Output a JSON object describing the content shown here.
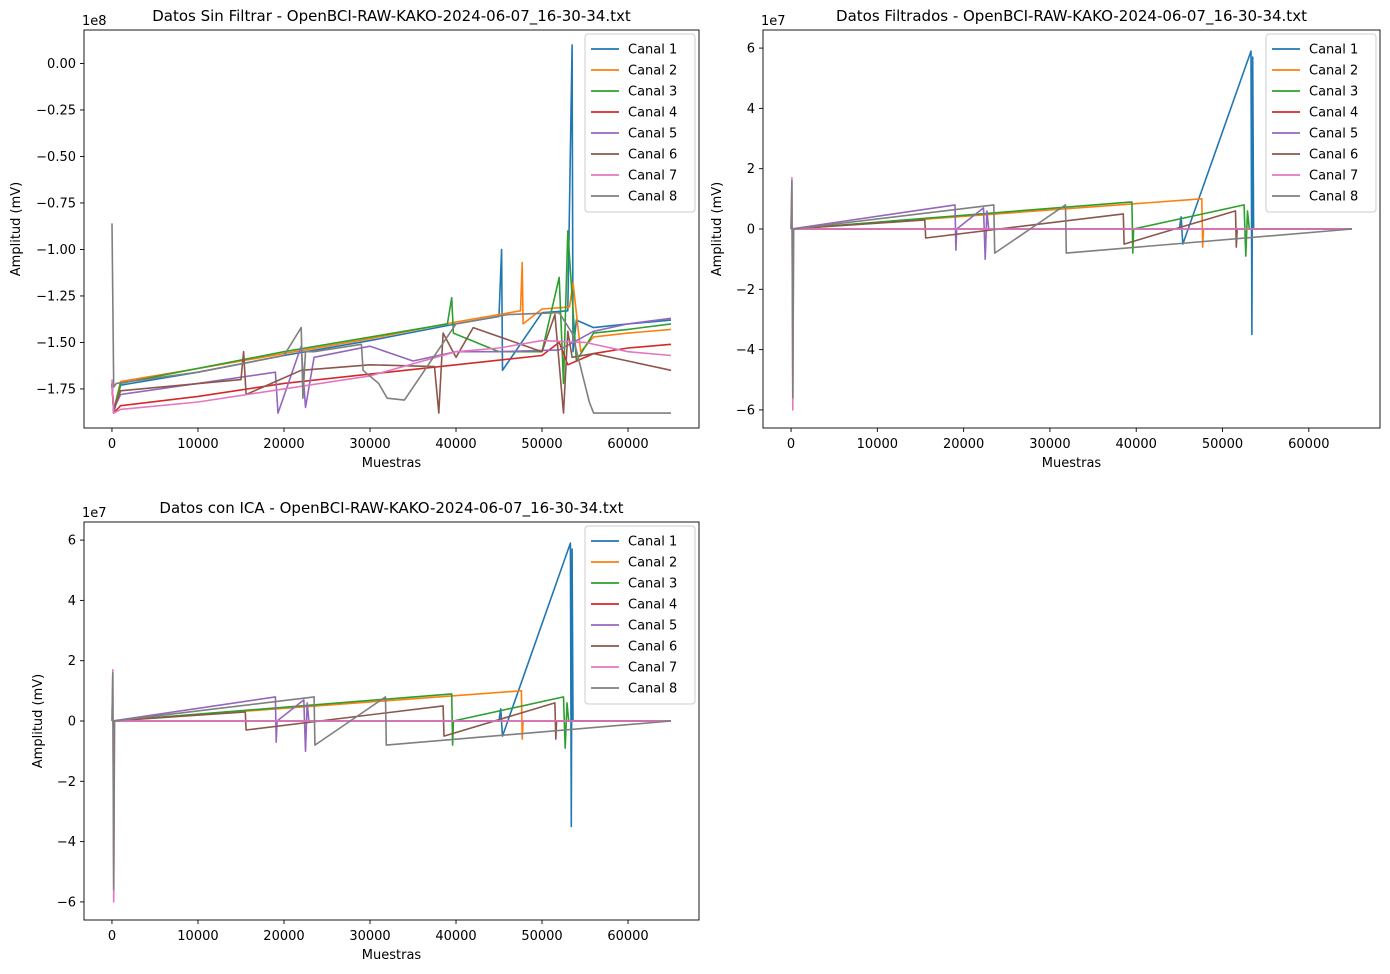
{
  "colors": [
    "#1f77b4",
    "#ff7f0e",
    "#2ca02c",
    "#d62728",
    "#9467bd",
    "#8c564b",
    "#e377c2",
    "#7f7f7f"
  ],
  "legend_labels": [
    "Canal 1",
    "Canal 2",
    "Canal 3",
    "Canal 4",
    "Canal 5",
    "Canal 6",
    "Canal 7",
    "Canal 8"
  ],
  "chart_data": [
    {
      "type": "line",
      "title": "Datos Sin Filtrar - OpenBCI-RAW-KAKO-2024-06-07_16-30-34.txt",
      "xlabel": "Muestras",
      "ylabel": "Amplitud (mV)",
      "y_offset_label": "1e8",
      "xlim": [
        -3250,
        68250
      ],
      "ylim": [
        -1.96,
        0.18
      ],
      "xticks": [
        0,
        10000,
        20000,
        30000,
        40000,
        50000,
        60000
      ],
      "xtick_labels": [
        "0",
        "10000",
        "20000",
        "30000",
        "40000",
        "50000",
        "60000"
      ],
      "yticks": [
        -1.75,
        -1.5,
        -1.25,
        -1.0,
        -0.75,
        -0.5,
        -0.25,
        0.0
      ],
      "ytick_labels": [
        "−1.75",
        "−1.50",
        "−1.25",
        "−1.00",
        "−0.75",
        "−0.50",
        "−0.25",
        "0.00"
      ],
      "legend_position": "top-right",
      "series": [
        {
          "name": "Canal 1",
          "x": [
            0,
            200,
            1000,
            10000,
            20000,
            30000,
            40000,
            45000,
            45300,
            45400,
            50000,
            53000,
            53500,
            53600,
            54000,
            56000,
            60000,
            65000
          ],
          "y": [
            -1.72,
            -1.88,
            -1.73,
            -1.66,
            -1.57,
            -1.49,
            -1.4,
            -1.36,
            -1.0,
            -1.65,
            -1.34,
            -1.33,
            0.1,
            -1.55,
            -1.38,
            -1.42,
            -1.4,
            -1.38
          ]
        },
        {
          "name": "Canal 2",
          "x": [
            0,
            200,
            1000,
            10000,
            20000,
            30000,
            40000,
            47500,
            47700,
            47800,
            50000,
            53200,
            53600,
            54500,
            56000,
            60000,
            65000
          ],
          "y": [
            -1.72,
            -1.86,
            -1.71,
            -1.64,
            -1.56,
            -1.48,
            -1.39,
            -1.33,
            -1.07,
            -1.4,
            -1.32,
            -1.31,
            -1.18,
            -1.55,
            -1.47,
            -1.45,
            -1.43
          ]
        },
        {
          "name": "Canal 3",
          "x": [
            0,
            200,
            1000,
            20000,
            39000,
            39500,
            39700,
            45000,
            50000,
            52000,
            52500,
            53000,
            54000,
            56000,
            60000,
            65000
          ],
          "y": [
            -1.72,
            -1.87,
            -1.72,
            -1.55,
            -1.4,
            -1.26,
            -1.45,
            -1.55,
            -1.55,
            -1.15,
            -1.72,
            -0.9,
            -1.6,
            -1.45,
            -1.43,
            -1.4
          ]
        },
        {
          "name": "Canal 4",
          "x": [
            0,
            200,
            1000,
            10000,
            20000,
            30000,
            40000,
            50000,
            52000,
            53000,
            56000,
            60000,
            65000
          ],
          "y": [
            -1.73,
            -1.88,
            -1.84,
            -1.79,
            -1.72,
            -1.67,
            -1.62,
            -1.57,
            -1.5,
            -1.62,
            -1.56,
            -1.53,
            -1.51
          ]
        },
        {
          "name": "Canal 5",
          "x": [
            0,
            200,
            1000,
            10000,
            19000,
            19300,
            22000,
            22500,
            23500,
            30000,
            35000,
            40000,
            45000,
            52000,
            56000,
            60000,
            65000
          ],
          "y": [
            -1.72,
            -1.86,
            -1.78,
            -1.72,
            -1.66,
            -1.88,
            -1.52,
            -1.85,
            -1.58,
            -1.52,
            -1.6,
            -1.55,
            -1.55,
            -1.54,
            -1.44,
            -1.4,
            -1.37
          ]
        },
        {
          "name": "Canal 6",
          "x": [
            0,
            200,
            1000,
            15000,
            15300,
            15600,
            22000,
            30000,
            37500,
            38000,
            38500,
            40000,
            42000,
            50000,
            51500,
            52500,
            53000,
            53500,
            56000,
            60000,
            65000
          ],
          "y": [
            -1.72,
            -1.86,
            -1.76,
            -1.7,
            -1.55,
            -1.78,
            -1.65,
            -1.62,
            -1.63,
            -1.88,
            -1.45,
            -1.58,
            -1.42,
            -1.55,
            -1.35,
            -1.88,
            -1.44,
            -1.58,
            -1.56,
            -1.6,
            -1.65
          ]
        },
        {
          "name": "Canal 7",
          "x": [
            0,
            200,
            1000,
            10000,
            20000,
            30000,
            40000,
            45000,
            50000,
            55000,
            60000,
            65000
          ],
          "y": [
            -1.7,
            -1.88,
            -1.86,
            -1.82,
            -1.75,
            -1.68,
            -1.55,
            -1.53,
            -1.49,
            -1.5,
            -1.55,
            -1.57
          ]
        },
        {
          "name": "Canal 8",
          "x": [
            0,
            200,
            500,
            10000,
            20000,
            22000,
            22200,
            22500,
            23500,
            29000,
            29200,
            31000,
            32000,
            34000,
            40000,
            46000,
            52000,
            53500,
            55500,
            56000,
            65000
          ],
          "y": [
            -0.86,
            -1.74,
            -1.72,
            -1.66,
            -1.57,
            -1.42,
            -1.8,
            -1.55,
            -1.55,
            -1.51,
            -1.65,
            -1.72,
            -1.8,
            -1.81,
            -1.4,
            -1.35,
            -1.34,
            -1.45,
            -1.82,
            -1.88,
            -1.88
          ]
        }
      ]
    },
    {
      "type": "line",
      "title": "Datos Filtrados - OpenBCI-RAW-KAKO-2024-06-07_16-30-34.txt",
      "xlabel": "Muestras",
      "ylabel": "Amplitud (mV)",
      "y_offset_label": "1e7",
      "xlim": [
        -3250,
        68250
      ],
      "ylim": [
        -6.6,
        6.6
      ],
      "xticks": [
        0,
        10000,
        20000,
        30000,
        40000,
        50000,
        60000
      ],
      "xtick_labels": [
        "0",
        "10000",
        "20000",
        "30000",
        "40000",
        "50000",
        "60000"
      ],
      "yticks": [
        -6,
        -4,
        -2,
        0,
        2,
        4,
        6
      ],
      "ytick_labels": [
        "−6",
        "−4",
        "−2",
        "0",
        "2",
        "4",
        "6"
      ],
      "legend_position": "top-right",
      "series": [
        {
          "name": "Canal 1",
          "x": [
            0,
            45000,
            45200,
            45400,
            53300,
            53400,
            53500,
            53600,
            65000
          ],
          "y": [
            0,
            0,
            0.4,
            -0.5,
            5.9,
            -3.5,
            5.7,
            0,
            0
          ]
        },
        {
          "name": "Canal 2",
          "x": [
            0,
            47600,
            47700,
            47800,
            65000
          ],
          "y": [
            0,
            1.0,
            -0.6,
            0,
            0
          ]
        },
        {
          "name": "Canal 3",
          "x": [
            0,
            39500,
            39600,
            39700,
            52500,
            52700,
            52900,
            53100,
            65000
          ],
          "y": [
            0,
            0.9,
            -0.8,
            0,
            0.8,
            -0.9,
            0.6,
            0,
            0
          ]
        },
        {
          "name": "Canal 4",
          "x": [
            0,
            65000
          ],
          "y": [
            0,
            0
          ]
        },
        {
          "name": "Canal 5",
          "x": [
            0,
            19000,
            19100,
            19200,
            22300,
            22500,
            22700,
            22900,
            65000
          ],
          "y": [
            0,
            0.8,
            -0.7,
            0,
            0.7,
            -1.0,
            0.6,
            0,
            0
          ]
        },
        {
          "name": "Canal 6",
          "x": [
            0,
            15500,
            15600,
            38500,
            38600,
            51500,
            51600,
            51700,
            65000
          ],
          "y": [
            0,
            0.3,
            -0.3,
            0.5,
            -0.5,
            0.6,
            -0.6,
            0,
            0
          ]
        },
        {
          "name": "Canal 7",
          "x": [
            0,
            100,
            200,
            300,
            65000
          ],
          "y": [
            0,
            1.7,
            -6.0,
            0,
            0
          ]
        },
        {
          "name": "Canal 8",
          "x": [
            0,
            100,
            200,
            300,
            23500,
            23600,
            31800,
            31900,
            65000
          ],
          "y": [
            0,
            1.6,
            -5.6,
            0,
            0.8,
            -0.8,
            0.8,
            -0.8,
            0
          ]
        }
      ]
    },
    {
      "type": "line",
      "title": "Datos con ICA - OpenBCI-RAW-KAKO-2024-06-07_16-30-34.txt",
      "xlabel": "Muestras",
      "ylabel": "Amplitud (mV)",
      "y_offset_label": "1e7",
      "xlim": [
        -3250,
        68250
      ],
      "ylim": [
        -6.6,
        6.6
      ],
      "xticks": [
        0,
        10000,
        20000,
        30000,
        40000,
        50000,
        60000
      ],
      "xtick_labels": [
        "0",
        "10000",
        "20000",
        "30000",
        "40000",
        "50000",
        "60000"
      ],
      "yticks": [
        -6,
        -4,
        -2,
        0,
        2,
        4,
        6
      ],
      "ytick_labels": [
        "−6",
        "−4",
        "−2",
        "0",
        "2",
        "4",
        "6"
      ],
      "legend_position": "top-right",
      "series": [
        {
          "name": "Canal 1",
          "x": [
            0,
            45000,
            45200,
            45400,
            53300,
            53400,
            53500,
            53600,
            65000
          ],
          "y": [
            0,
            0,
            0.4,
            -0.5,
            5.9,
            -3.5,
            5.7,
            0,
            0
          ]
        },
        {
          "name": "Canal 2",
          "x": [
            0,
            47600,
            47700,
            47800,
            65000
          ],
          "y": [
            0,
            1.0,
            -0.6,
            0,
            0
          ]
        },
        {
          "name": "Canal 3",
          "x": [
            0,
            39500,
            39600,
            39700,
            52500,
            52700,
            52900,
            53100,
            65000
          ],
          "y": [
            0,
            0.9,
            -0.8,
            0,
            0.8,
            -0.9,
            0.6,
            0,
            0
          ]
        },
        {
          "name": "Canal 4",
          "x": [
            0,
            65000
          ],
          "y": [
            0,
            0
          ]
        },
        {
          "name": "Canal 5",
          "x": [
            0,
            19000,
            19100,
            19200,
            22300,
            22500,
            22700,
            22900,
            65000
          ],
          "y": [
            0,
            0.8,
            -0.7,
            0,
            0.7,
            -1.0,
            0.6,
            0,
            0
          ]
        },
        {
          "name": "Canal 6",
          "x": [
            0,
            15500,
            15600,
            38500,
            38600,
            51500,
            51600,
            51700,
            65000
          ],
          "y": [
            0,
            0.3,
            -0.3,
            0.5,
            -0.5,
            0.6,
            -0.6,
            0,
            0
          ]
        },
        {
          "name": "Canal 7",
          "x": [
            0,
            100,
            200,
            300,
            65000
          ],
          "y": [
            0,
            1.7,
            -6.0,
            0,
            0
          ]
        },
        {
          "name": "Canal 8",
          "x": [
            0,
            100,
            200,
            300,
            23500,
            23600,
            31800,
            31900,
            65000
          ],
          "y": [
            0,
            1.6,
            -5.6,
            0,
            0.8,
            -0.8,
            0.8,
            -0.8,
            0
          ]
        }
      ]
    }
  ]
}
